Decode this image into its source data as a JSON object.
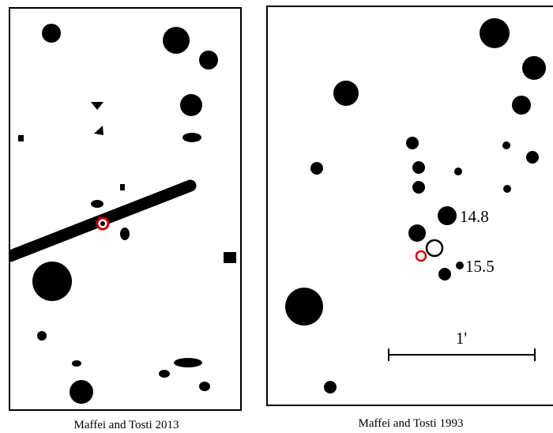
{
  "panels": {
    "left": {
      "caption": "Maffei and Tosti 2013"
    },
    "right": {
      "caption": "Maffei and Tosti 1993",
      "labels": [
        "14.8",
        "15.5"
      ],
      "scale_bar": "1'"
    }
  },
  "colors": {
    "stars": "#000000",
    "marker": "#d40000",
    "background": "#ffffff"
  }
}
